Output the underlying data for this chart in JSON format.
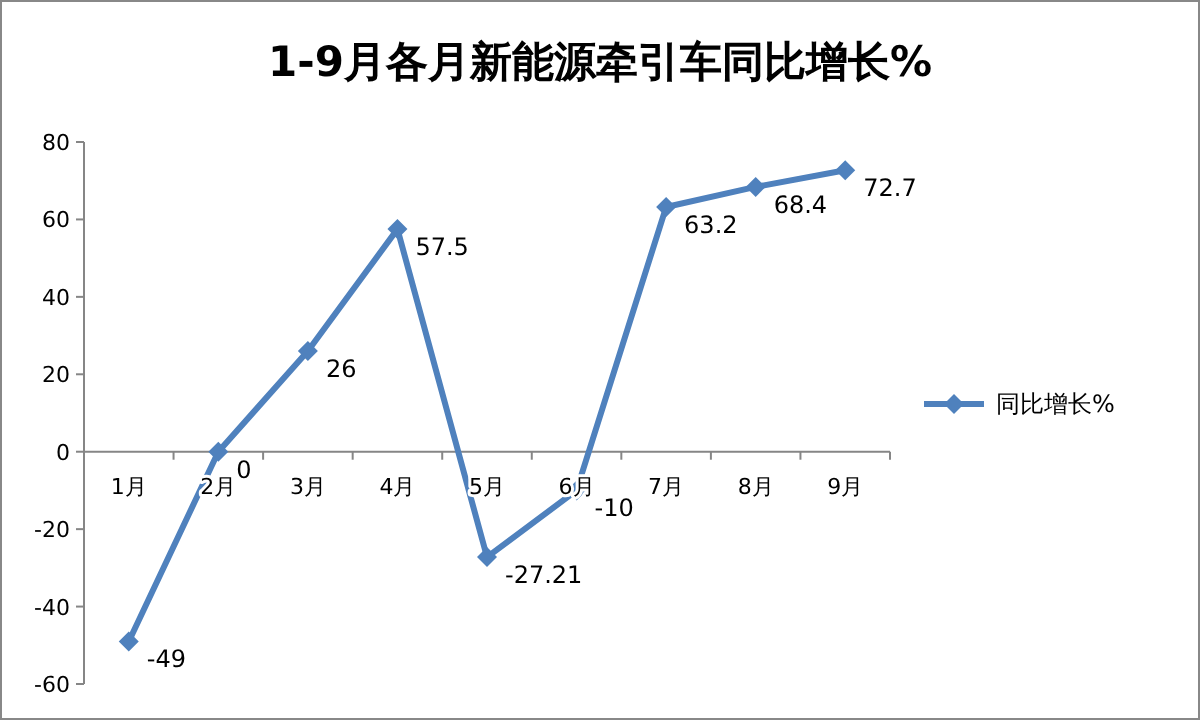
{
  "chart_data": {
    "type": "line",
    "title": "1-9月各月新能源牵引车同比增长%",
    "categories": [
      "1月",
      "2月",
      "3月",
      "4月",
      "5月",
      "6月",
      "7月",
      "8月",
      "9月"
    ],
    "series": [
      {
        "name": "同比增长%",
        "color": "#4f81bd",
        "values": [
          -49,
          0,
          26,
          57.5,
          -27.21,
          -10,
          63.2,
          68.4,
          72.7
        ]
      }
    ],
    "ylim": [
      -60,
      80
    ],
    "yticks": [
      -60,
      -40,
      -20,
      0,
      20,
      40,
      60,
      80
    ],
    "legend": "right",
    "marker": "diamond",
    "data_labels": true
  }
}
